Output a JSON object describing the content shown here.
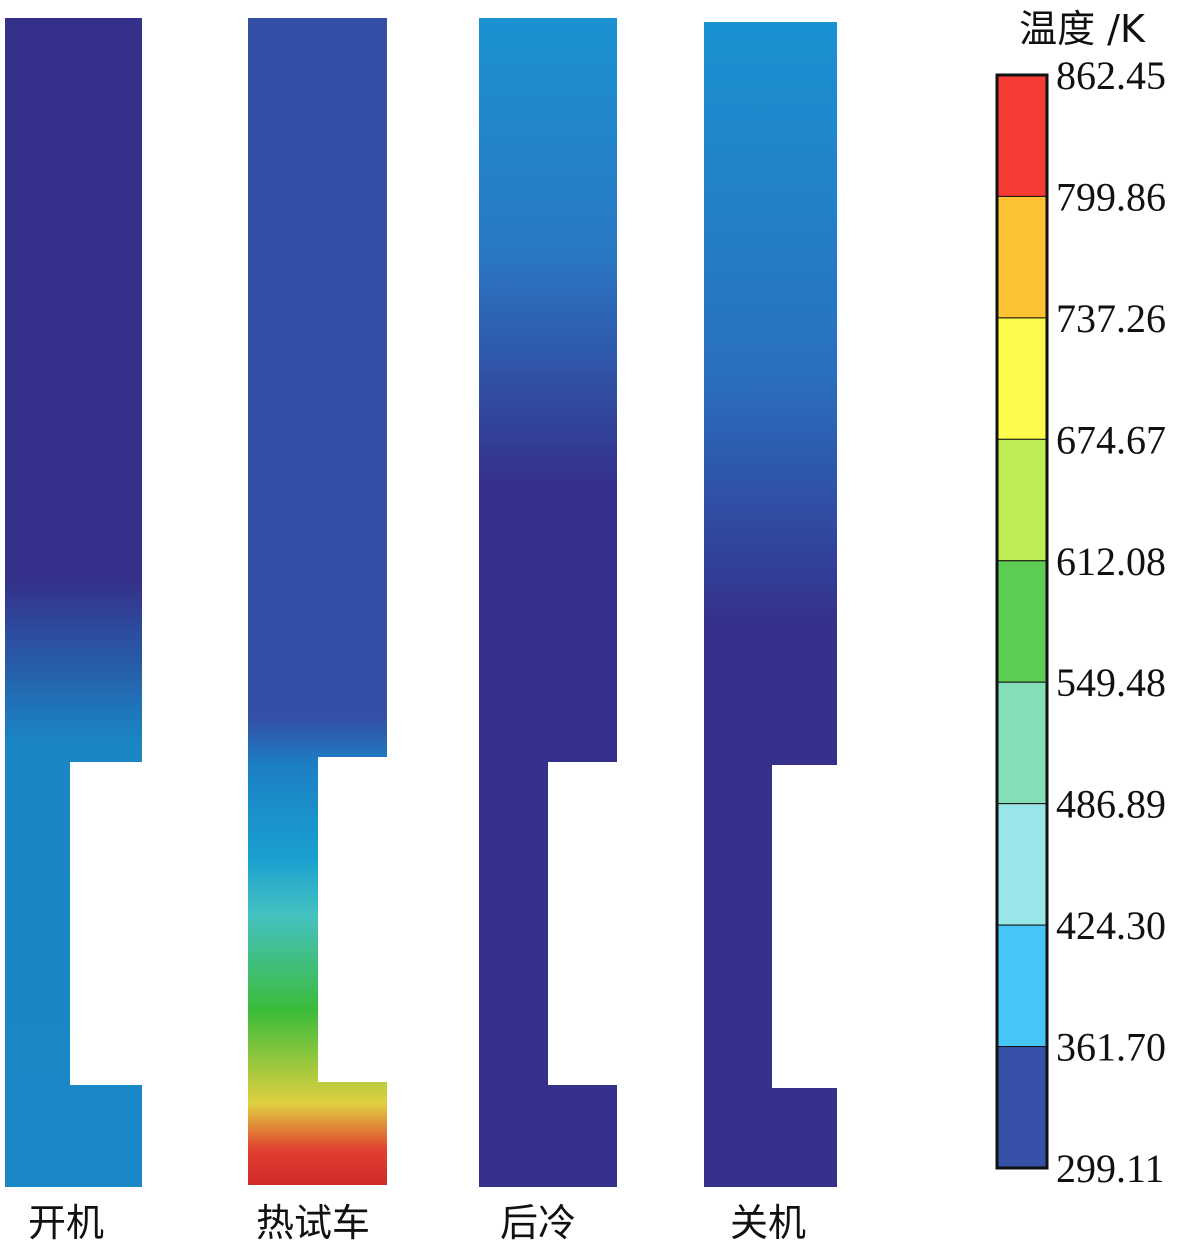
{
  "panels": [
    {
      "label": "开机"
    },
    {
      "label": "热试车"
    },
    {
      "label": "后冷"
    },
    {
      "label": "关机"
    }
  ],
  "colorbar": {
    "title": "温度 /K",
    "ticks": [
      "862.45",
      "799.86",
      "737.26",
      "674.67",
      "612.08",
      "549.48",
      "486.89",
      "424.30",
      "361.70",
      "299.11"
    ],
    "colors": [
      "#f63c35",
      "#fdc334",
      "#fdfc4c",
      "#c0ec57",
      "#5ccd52",
      "#84dfb8",
      "#98e6e8",
      "#46c6f8",
      "#3750a8"
    ]
  }
}
